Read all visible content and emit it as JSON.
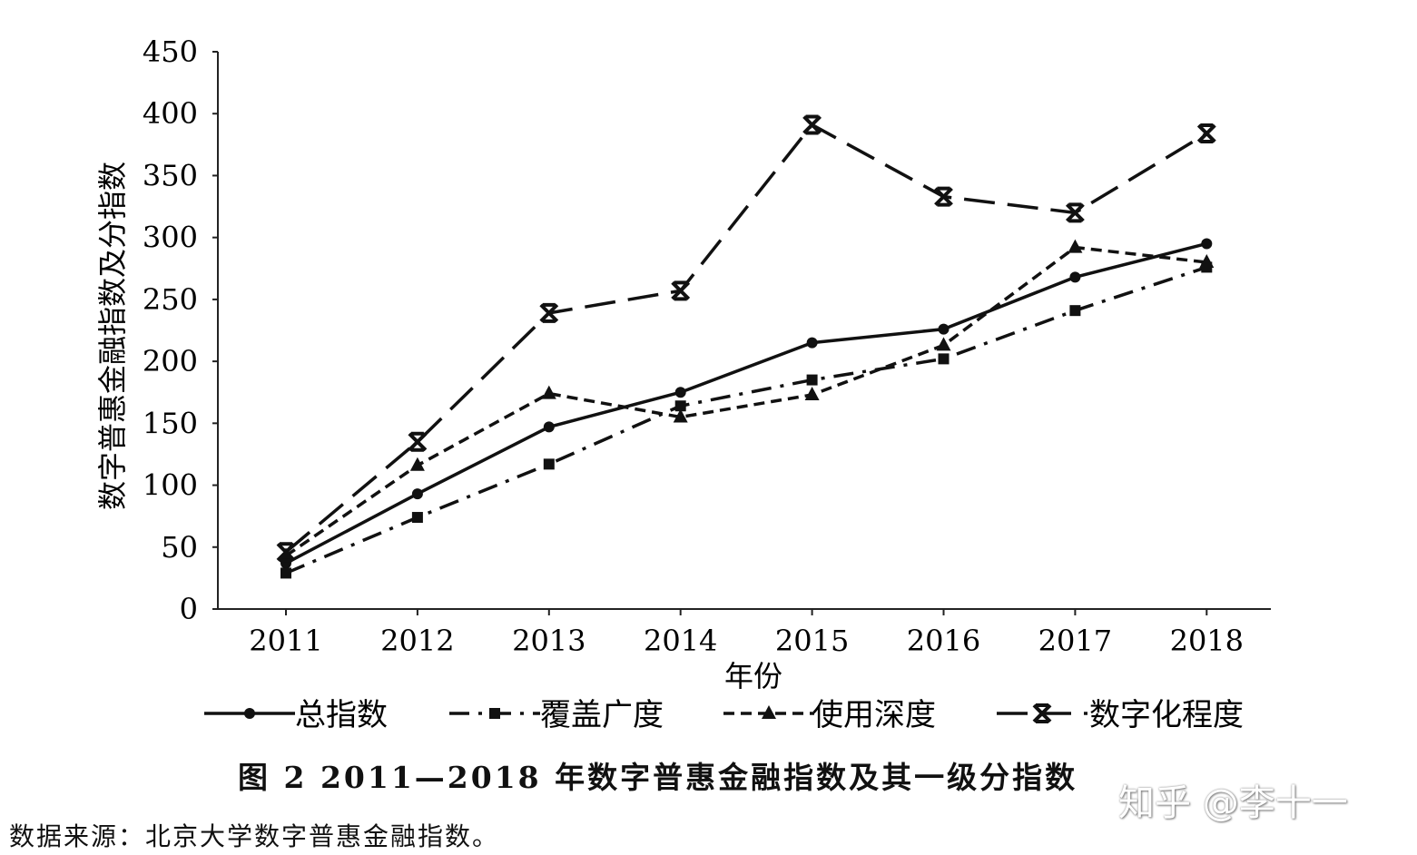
{
  "chart_data": {
    "type": "line",
    "title": "图 2   2011—2018 年数字普惠金融指数及其一级分指数",
    "xlabel": "年份",
    "ylabel": "数字普惠金融指数及分指数",
    "categories": [
      "2011",
      "2012",
      "2013",
      "2014",
      "2015",
      "2016",
      "2017",
      "2018"
    ],
    "ylim": [
      0,
      450
    ],
    "yticks": [
      "0",
      "50",
      "100",
      "150",
      "200",
      "250",
      "300",
      "350",
      "400",
      "450"
    ],
    "grid": false,
    "legend_position": "bottom",
    "series": [
      {
        "name": "总指数",
        "marker": "circle",
        "dash": "solid",
        "values": [
          37,
          93,
          147,
          175,
          215,
          226,
          268,
          295
        ]
      },
      {
        "name": "覆盖广度",
        "marker": "square",
        "dash": "dashdot",
        "values": [
          29,
          74,
          117,
          164,
          185,
          202,
          241,
          276
        ]
      },
      {
        "name": "使用深度",
        "marker": "triangle",
        "dash": "shortdash",
        "values": [
          43,
          116,
          174,
          155,
          173,
          213,
          292,
          280
        ]
      },
      {
        "name": "数字化程度",
        "marker": "x",
        "dash": "longdash",
        "values": [
          46,
          135,
          239,
          257,
          391,
          333,
          320,
          384
        ]
      }
    ]
  },
  "caption": "图 2   2011—2018 年数字普惠金融指数及其一级分指数",
  "source": "数据来源：北京大学数字普惠金融指数。",
  "watermark": "知乎 @李十一"
}
